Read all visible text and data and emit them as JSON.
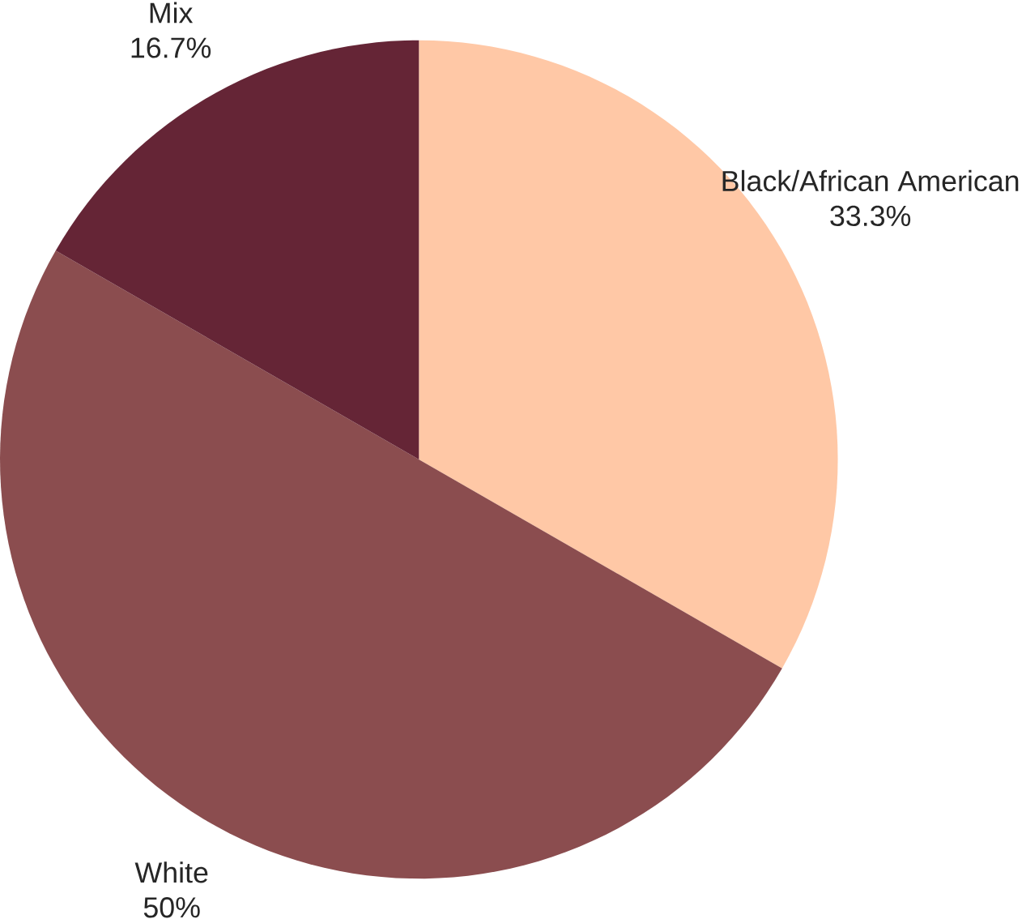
{
  "chart_data": {
    "type": "pie",
    "categories": [
      "Black/African American",
      "White",
      "Mix"
    ],
    "values": [
      33.3,
      50,
      16.7
    ],
    "value_labels": [
      "33.3%",
      "50%",
      "16.7%"
    ],
    "colors": [
      "#ffc8a6",
      "#8b4d4f",
      "#652536"
    ]
  }
}
